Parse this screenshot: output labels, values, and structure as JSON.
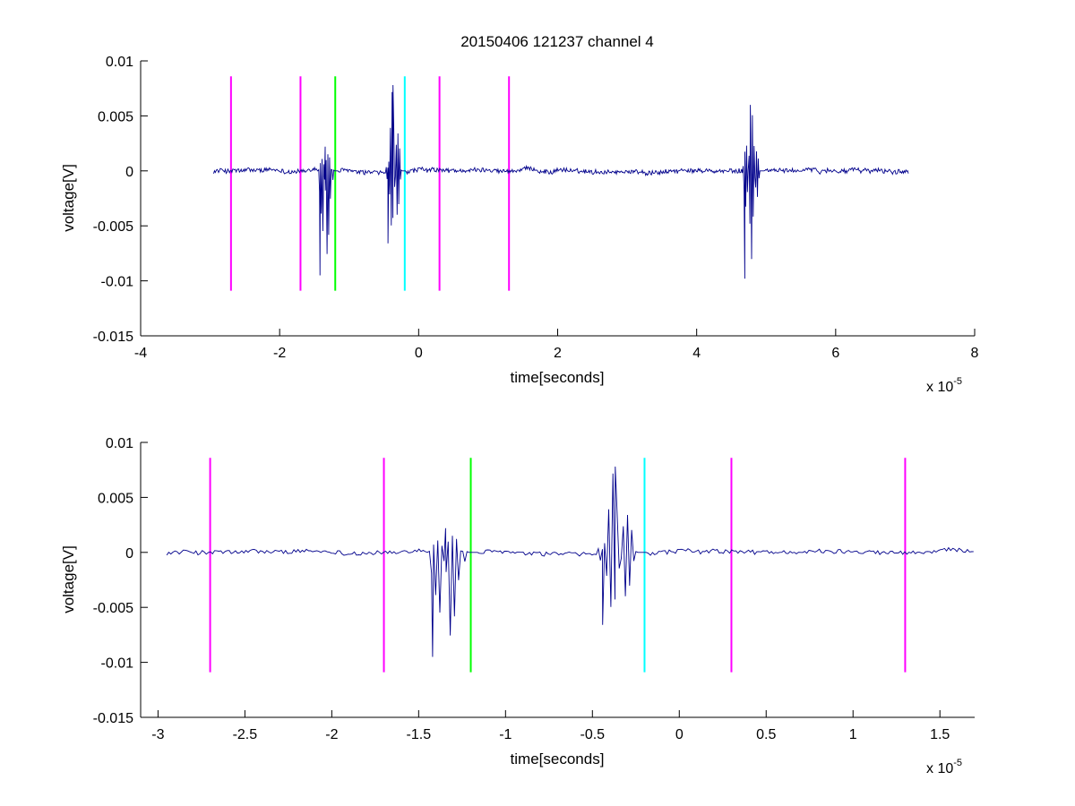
{
  "chart_data": [
    {
      "type": "line",
      "title": "20150406 121237 channel 4",
      "xlabel": "time[seconds]",
      "ylabel": "voltage[V]",
      "xlim": [
        -4,
        8
      ],
      "ylim": [
        -0.015,
        0.01
      ],
      "x_multiplier": "x 10",
      "x_exponent": "-5",
      "xticks": [
        -4,
        -2,
        0,
        2,
        4,
        6,
        8
      ],
      "xtick_labels": [
        "-4",
        "-2",
        "0",
        "2",
        "4",
        "6",
        "8"
      ],
      "yticks": [
        0.01,
        0.005,
        0,
        -0.005,
        -0.01,
        -0.015
      ],
      "ytick_labels": [
        "0.01",
        "0.005",
        "0",
        "-0.005",
        "-0.01",
        "-0.015"
      ],
      "grid": false,
      "series_color": "#00008B",
      "signal": {
        "x_start": -2.95,
        "x_end": 7.05,
        "noise_amplitude": 0.0004,
        "bursts": [
          {
            "x_start": -1.45,
            "x_end": -1.15,
            "peak_max": 0.0022,
            "peak_min": -0.0095
          },
          {
            "x_start": -0.47,
            "x_end": -0.18,
            "peak_max": 0.0078,
            "peak_min": -0.0066
          },
          {
            "x_start": 4.66,
            "x_end": 4.98,
            "peak_max": 0.006,
            "peak_min": -0.0098
          }
        ]
      },
      "markers": [
        {
          "x": -2.7,
          "color": "#FF00FF",
          "y_top": 0.0086,
          "y_bottom": -0.0109
        },
        {
          "x": -1.7,
          "color": "#FF00FF",
          "y_top": 0.0086,
          "y_bottom": -0.0109
        },
        {
          "x": -1.2,
          "color": "#00FF00",
          "y_top": 0.0086,
          "y_bottom": -0.0109
        },
        {
          "x": -0.2,
          "color": "#00FFFF",
          "y_top": 0.0086,
          "y_bottom": -0.0109
        },
        {
          "x": 0.3,
          "color": "#FF00FF",
          "y_top": 0.0086,
          "y_bottom": -0.0109
        },
        {
          "x": 1.3,
          "color": "#FF00FF",
          "y_top": 0.0086,
          "y_bottom": -0.0109
        }
      ]
    },
    {
      "type": "line",
      "title": "",
      "xlabel": "time[seconds]",
      "ylabel": "voltage[V]",
      "xlim": [
        -3.1,
        1.7
      ],
      "ylim": [
        -0.015,
        0.01
      ],
      "x_multiplier": "x 10",
      "x_exponent": "-5",
      "xticks": [
        -3,
        -2.5,
        -2,
        -1.5,
        -1,
        -0.5,
        0,
        0.5,
        1,
        1.5
      ],
      "xtick_labels": [
        "-3",
        "-2.5",
        "-2",
        "-1.5",
        "-1",
        "-0.5",
        "0",
        "0.5",
        "1",
        "1.5"
      ],
      "yticks": [
        0.01,
        0.005,
        0,
        -0.005,
        -0.01,
        -0.015
      ],
      "ytick_labels": [
        "0.01",
        "0.005",
        "0",
        "-0.005",
        "-0.01",
        "-0.015"
      ],
      "grid": false,
      "series_color": "#00008B",
      "signal": {
        "x_start": -2.95,
        "x_end": 1.7,
        "noise_amplitude": 0.0004,
        "bursts": [
          {
            "x_start": -1.45,
            "x_end": -1.15,
            "peak_max": 0.0022,
            "peak_min": -0.0095
          },
          {
            "x_start": -0.47,
            "x_end": -0.18,
            "peak_max": 0.0078,
            "peak_min": -0.0066
          }
        ]
      },
      "markers": [
        {
          "x": -2.7,
          "color": "#FF00FF",
          "y_top": 0.0086,
          "y_bottom": -0.0109
        },
        {
          "x": -1.7,
          "color": "#FF00FF",
          "y_top": 0.0086,
          "y_bottom": -0.0109
        },
        {
          "x": -1.2,
          "color": "#00FF00",
          "y_top": 0.0086,
          "y_bottom": -0.0109
        },
        {
          "x": -0.2,
          "color": "#00FFFF",
          "y_top": 0.0086,
          "y_bottom": -0.0109
        },
        {
          "x": 0.3,
          "color": "#FF00FF",
          "y_top": 0.0086,
          "y_bottom": -0.0109
        },
        {
          "x": 1.3,
          "color": "#FF00FF",
          "y_top": 0.0086,
          "y_bottom": -0.0109
        }
      ]
    }
  ]
}
